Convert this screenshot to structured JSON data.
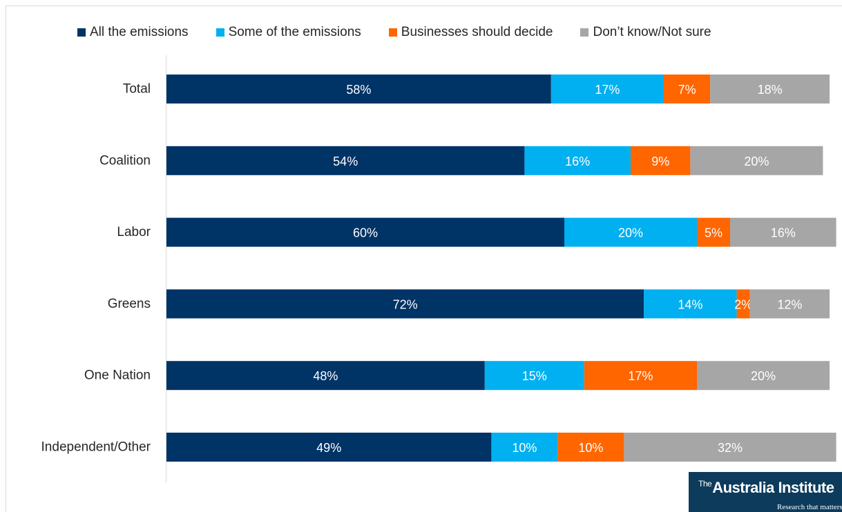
{
  "chart_data": {
    "type": "bar",
    "orientation": "horizontal",
    "stacked": true,
    "categories": [
      "Total",
      "Coalition",
      "Labor",
      "Greens",
      "One Nation",
      "Independent/Other"
    ],
    "series": [
      {
        "name": "All the emissions",
        "color": "#003366",
        "values": [
          58,
          54,
          60,
          72,
          48,
          49
        ],
        "labels": [
          "58%",
          "54%",
          "60%",
          "72%",
          "48%",
          "49%"
        ]
      },
      {
        "name": "Some of the emissions",
        "color": "#00b0f0",
        "values": [
          17,
          16,
          20,
          14,
          15,
          10
        ],
        "labels": [
          "17%",
          "16%",
          "20%",
          "14%",
          "15%",
          "10%"
        ]
      },
      {
        "name": "Businesses should decide",
        "color": "#ff6600",
        "values": [
          7,
          9,
          5,
          2,
          17,
          10
        ],
        "labels": [
          "7%",
          "9%",
          "5%",
          "2%",
          "17%",
          "10%"
        ]
      },
      {
        "name": "Don’t know/Not sure",
        "color": "#a6a6a6",
        "values": [
          18,
          20,
          16,
          12,
          20,
          32
        ],
        "labels": [
          "18%",
          "20%",
          "16%",
          "12%",
          "20%",
          "32%"
        ]
      }
    ],
    "xlim": [
      0,
      100
    ],
    "legend_position": "top",
    "grid": false
  },
  "logo": {
    "the": "The",
    "name": "Australia Institute",
    "tagline": "Research that matters."
  }
}
